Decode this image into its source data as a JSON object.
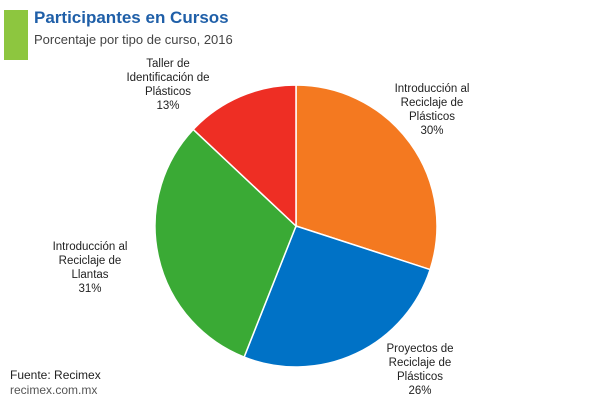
{
  "header": {
    "title": "Participantes en Cursos",
    "subtitle": "Porcentaje por tipo de curso, 2016"
  },
  "chart_data": {
    "type": "pie",
    "slices": [
      {
        "label": [
          "Introducción al",
          "Reciclaje de",
          "Plásticos"
        ],
        "pct": "30%",
        "value": 30,
        "color": "#f47920"
      },
      {
        "label": [
          "Proyectos de",
          "Reciclaje de",
          "Plásticos"
        ],
        "pct": "26%",
        "value": 26,
        "color": "#0072c6"
      },
      {
        "label": [
          "Introducción al",
          "Reciclaje de",
          "Llantas"
        ],
        "pct": "31%",
        "value": 31,
        "color": "#3aaa35"
      },
      {
        "label": [
          "Taller de",
          "Identificación de",
          "Plásticos"
        ],
        "pct": "13%",
        "value": 13,
        "color": "#ee2e24"
      }
    ],
    "start_angle_deg": 0,
    "direction": "clockwise"
  },
  "footer": {
    "source": "Fuente: Recimex",
    "site": "recimex.com.mx"
  },
  "colors": {
    "accent": "#8dc63f",
    "title": "#1f5fa8"
  }
}
